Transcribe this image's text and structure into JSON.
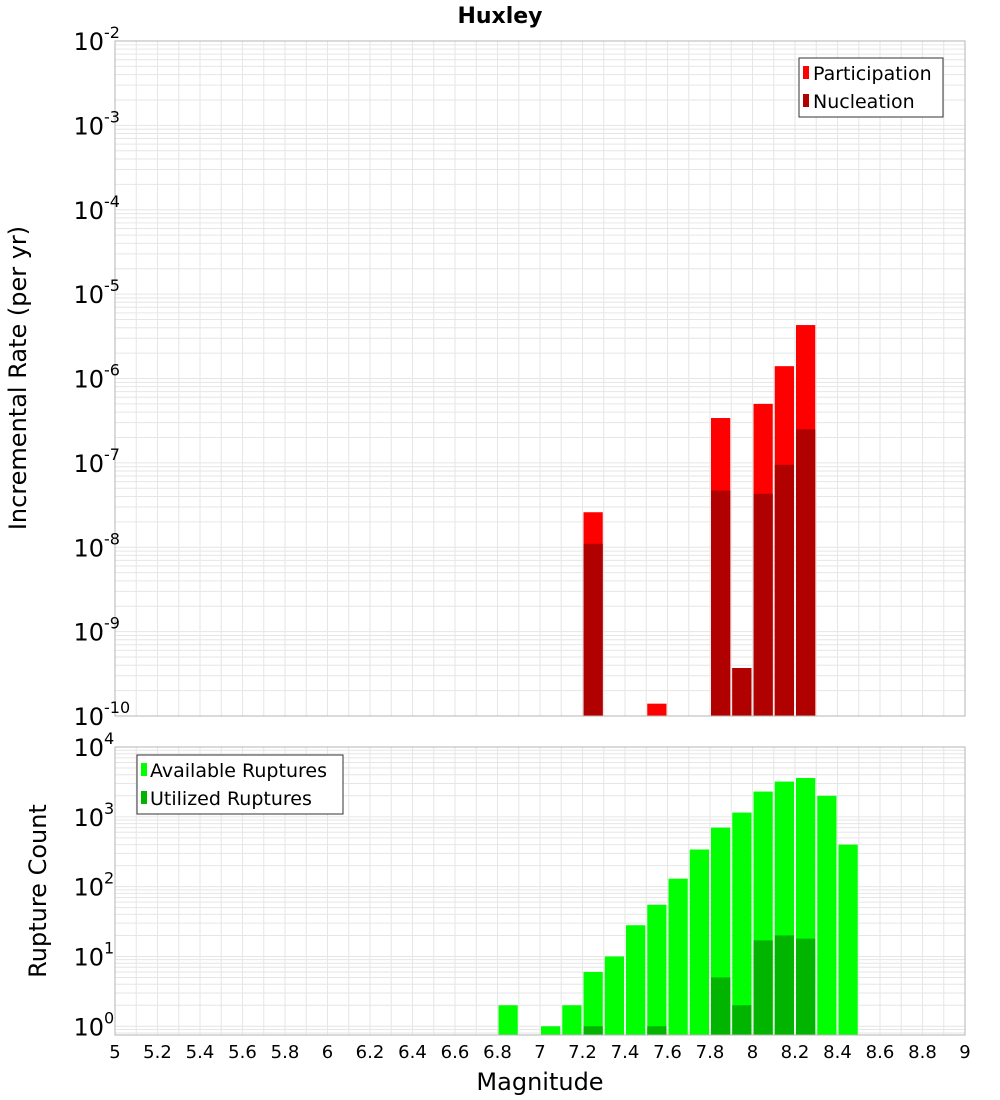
{
  "title": "Huxley",
  "colors": {
    "participation": "#ff0000",
    "nucleation": "#b00000",
    "available": "#00ff00",
    "utilized": "#00b400",
    "grid": "#e6e6e6",
    "frame": "#b4b4b4"
  },
  "chart_data": [
    {
      "type": "bar",
      "ylabel": "Incremental Rate (per yr)",
      "xlabel": "Magnitude",
      "xlim": [
        5,
        9
      ],
      "ylim": [
        1e-10,
        0.01
      ],
      "yscale": "log",
      "grid": true,
      "legend_position": "top-right",
      "bar_width": 0.1,
      "yticks": [
        {
          "base": "10",
          "exp": "-10",
          "value": 1e-10
        },
        {
          "base": "10",
          "exp": "-9",
          "value": 1e-09
        },
        {
          "base": "10",
          "exp": "-8",
          "value": 1e-08
        },
        {
          "base": "10",
          "exp": "-7",
          "value": 1e-07
        },
        {
          "base": "10",
          "exp": "-6",
          "value": 1e-06
        },
        {
          "base": "10",
          "exp": "-5",
          "value": 1e-05
        },
        {
          "base": "10",
          "exp": "-4",
          "value": 0.0001
        },
        {
          "base": "10",
          "exp": "-3",
          "value": 0.001
        },
        {
          "base": "10",
          "exp": "-2",
          "value": 0.01
        }
      ],
      "series": [
        {
          "name": "Participation",
          "color": "#ff0000",
          "x": [
            7.25,
            7.55,
            7.85,
            7.95,
            8.05,
            8.15,
            8.25
          ],
          "values": [
            2.6e-08,
            1.4e-10,
            3.4e-07,
            3.7e-10,
            5e-07,
            1.4e-06,
            4.3e-06
          ]
        },
        {
          "name": "Nucleation",
          "color": "#b00000",
          "x": [
            7.25,
            7.85,
            7.95,
            8.05,
            8.15,
            8.25
          ],
          "values": [
            1.1e-08,
            4.7e-08,
            3.7e-10,
            4.3e-08,
            9.5e-08,
            2.5e-07
          ]
        }
      ]
    },
    {
      "type": "bar",
      "ylabel": "Rupture Count",
      "xlabel": "Magnitude",
      "xlim": [
        5,
        9
      ],
      "ylim": [
        0.75,
        10000
      ],
      "yscale": "log",
      "grid": true,
      "legend_position": "top-left",
      "bar_width": 0.1,
      "yticks": [
        {
          "base": "10",
          "exp": "0",
          "value": 1
        },
        {
          "base": "10",
          "exp": "1",
          "value": 10
        },
        {
          "base": "10",
          "exp": "2",
          "value": 100
        },
        {
          "base": "10",
          "exp": "3",
          "value": 1000
        },
        {
          "base": "10",
          "exp": "4",
          "value": 10000
        }
      ],
      "series": [
        {
          "name": "Available Ruptures",
          "color": "#00ff00",
          "x": [
            6.85,
            7.05,
            7.15,
            7.25,
            7.35,
            7.45,
            7.55,
            7.65,
            7.75,
            7.85,
            7.95,
            8.05,
            8.15,
            8.25,
            8.35,
            8.45
          ],
          "values": [
            2,
            1,
            2,
            6,
            10,
            28,
            55,
            130,
            340,
            700,
            1150,
            2300,
            3200,
            3600,
            2000,
            400
          ]
        },
        {
          "name": "Utilized Ruptures",
          "color": "#00b400",
          "x": [
            7.25,
            7.55,
            7.85,
            7.95,
            8.05,
            8.15,
            8.25
          ],
          "values": [
            1,
            1,
            5,
            2,
            17,
            20,
            18
          ]
        }
      ]
    }
  ],
  "xticks": [
    "5",
    "5.2",
    "5.4",
    "5.6",
    "5.8",
    "6",
    "6.2",
    "6.4",
    "6.6",
    "6.8",
    "7",
    "7.2",
    "7.4",
    "7.6",
    "7.8",
    "8",
    "8.2",
    "8.4",
    "8.6",
    "8.8",
    "9"
  ]
}
